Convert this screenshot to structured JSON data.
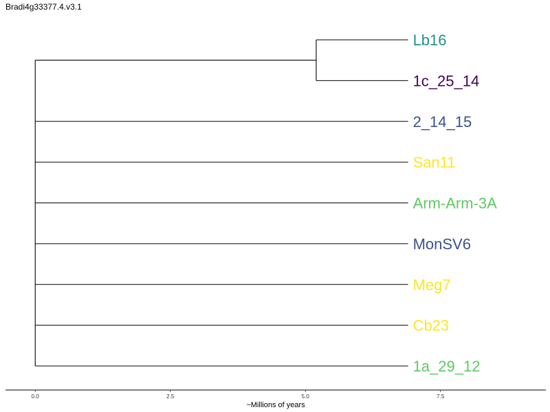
{
  "title": "Bradi4g33377.4.v3.1",
  "chart_data": {
    "type": "dendrogram",
    "title": "Bradi4g33377.4.v3.1",
    "xlabel": "~Millions of years",
    "xticks": [
      0.0,
      2.5,
      5.0,
      7.5
    ],
    "xtick_labels": [
      "0.0",
      "2.5",
      "5.0",
      "7.5"
    ],
    "xlim": [
      -0.55,
      9.45
    ],
    "tips": [
      {
        "label": "Lb16",
        "color": "#21918c"
      },
      {
        "label": "1c_25_14",
        "color": "#440154"
      },
      {
        "label": "2_14_15",
        "color": "#3b528b"
      },
      {
        "label": "San11",
        "color": "#fde725"
      },
      {
        "label": "Arm-Arm-3A",
        "color": "#5ec962"
      },
      {
        "label": "MonSV6",
        "color": "#3b528b"
      },
      {
        "label": "Meg7",
        "color": "#fde725"
      },
      {
        "label": "Cb23",
        "color": "#fde725"
      },
      {
        "label": "1a_29_12",
        "color": "#5ec962"
      }
    ],
    "tip_depth": 6.9,
    "clades": [
      {
        "members": [
          "Lb16",
          "1c_25_14"
        ],
        "node_x": 5.2
      }
    ],
    "root_x": 0.0
  }
}
